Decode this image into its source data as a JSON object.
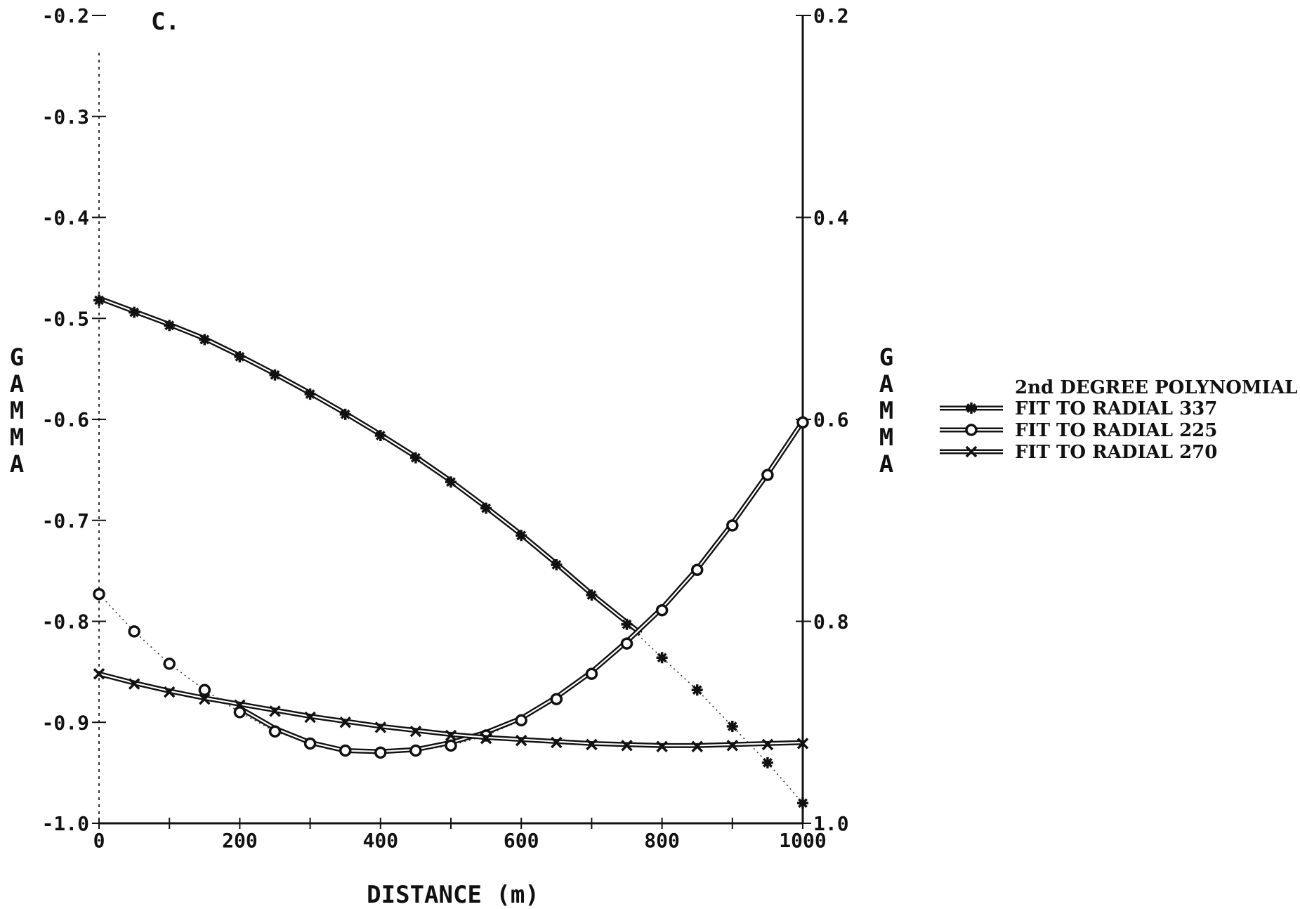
{
  "chart_data": {
    "type": "line",
    "panel_label": "C.",
    "xlabel": "DISTANCE (m)",
    "ylabel_left": "GAMMA",
    "ylabel_right": "GAMMA",
    "x_ticks": [
      "0",
      "200",
      "400",
      "600",
      "800",
      "1000"
    ],
    "y_ticks_left": [
      "-0.2",
      "-0.3",
      "-0.4",
      "-0.5",
      "-0.6",
      "-0.7",
      "-0.8",
      "-0.9",
      "-1.0"
    ],
    "y_ticks_right": [
      "0.2",
      "0.4",
      "0.6",
      "0.8",
      "1.0"
    ],
    "xlim": [
      0,
      1000
    ],
    "ylim": [
      -1.0,
      -0.2
    ],
    "legend_placement": "right",
    "legend_title": "2nd DEGREE POLYNOMIAL",
    "x": [
      0,
      50,
      100,
      150,
      200,
      250,
      300,
      350,
      400,
      450,
      500,
      550,
      600,
      650,
      700,
      750,
      800,
      850,
      900,
      950,
      1000
    ],
    "series": [
      {
        "name": "FIT TO RADIAL 337",
        "marker": "star",
        "color": "#111111",
        "values": [
          -0.482,
          -0.494,
          -0.507,
          -0.521,
          -0.538,
          -0.556,
          -0.575,
          -0.595,
          -0.616,
          -0.638,
          -0.662,
          -0.688,
          -0.715,
          -0.744,
          -0.774,
          -0.803,
          -0.836,
          -0.868,
          -0.904,
          -0.94,
          -0.98
        ],
        "fit_x": [
          0,
          50,
          100,
          150,
          200,
          250,
          300,
          350,
          400,
          450,
          500,
          550,
          600,
          650,
          700,
          750,
          770
        ],
        "fit_values": [
          -0.48,
          -0.493,
          -0.506,
          -0.52,
          -0.537,
          -0.555,
          -0.574,
          -0.594,
          -0.615,
          -0.637,
          -0.661,
          -0.687,
          -0.714,
          -0.743,
          -0.773,
          -0.801,
          -0.812
        ]
      },
      {
        "name": "FIT TO RADIAL 225",
        "marker": "circle",
        "color": "#111111",
        "values": [
          -0.773,
          -0.81,
          -0.842,
          -0.868,
          -0.89,
          -0.909,
          -0.921,
          -0.928,
          -0.93,
          -0.928,
          -0.923,
          -0.913,
          -0.898,
          -0.877,
          -0.852,
          -0.822,
          -0.789,
          -0.749,
          -0.705,
          -0.655,
          -0.603
        ],
        "fit_x": [
          200,
          250,
          300,
          350,
          400,
          450,
          500,
          550,
          600,
          650,
          700,
          750,
          800,
          850,
          900,
          950,
          1000
        ],
        "fit_values": [
          -0.886,
          -0.906,
          -0.92,
          -0.928,
          -0.929,
          -0.927,
          -0.92,
          -0.91,
          -0.896,
          -0.875,
          -0.85,
          -0.82,
          -0.787,
          -0.748,
          -0.703,
          -0.654,
          -0.602
        ]
      },
      {
        "name": "FIT TO RADIAL 270",
        "marker": "x",
        "color": "#111111",
        "values": [
          -0.852,
          -0.862,
          -0.87,
          -0.877,
          -0.883,
          -0.889,
          -0.895,
          -0.9,
          -0.905,
          -0.909,
          -0.913,
          -0.916,
          -0.918,
          -0.92,
          -0.922,
          -0.923,
          -0.924,
          -0.924,
          -0.923,
          -0.922,
          -0.921
        ],
        "fit_x": [
          0,
          50,
          100,
          150,
          200,
          250,
          300,
          350,
          400,
          450,
          500,
          550,
          600,
          650,
          700,
          750,
          800,
          850,
          900,
          950,
          1000
        ],
        "fit_values": [
          -0.852,
          -0.861,
          -0.869,
          -0.876,
          -0.882,
          -0.888,
          -0.894,
          -0.899,
          -0.904,
          -0.908,
          -0.912,
          -0.915,
          -0.917,
          -0.919,
          -0.921,
          -0.922,
          -0.923,
          -0.923,
          -0.922,
          -0.921,
          -0.92
        ]
      }
    ]
  }
}
